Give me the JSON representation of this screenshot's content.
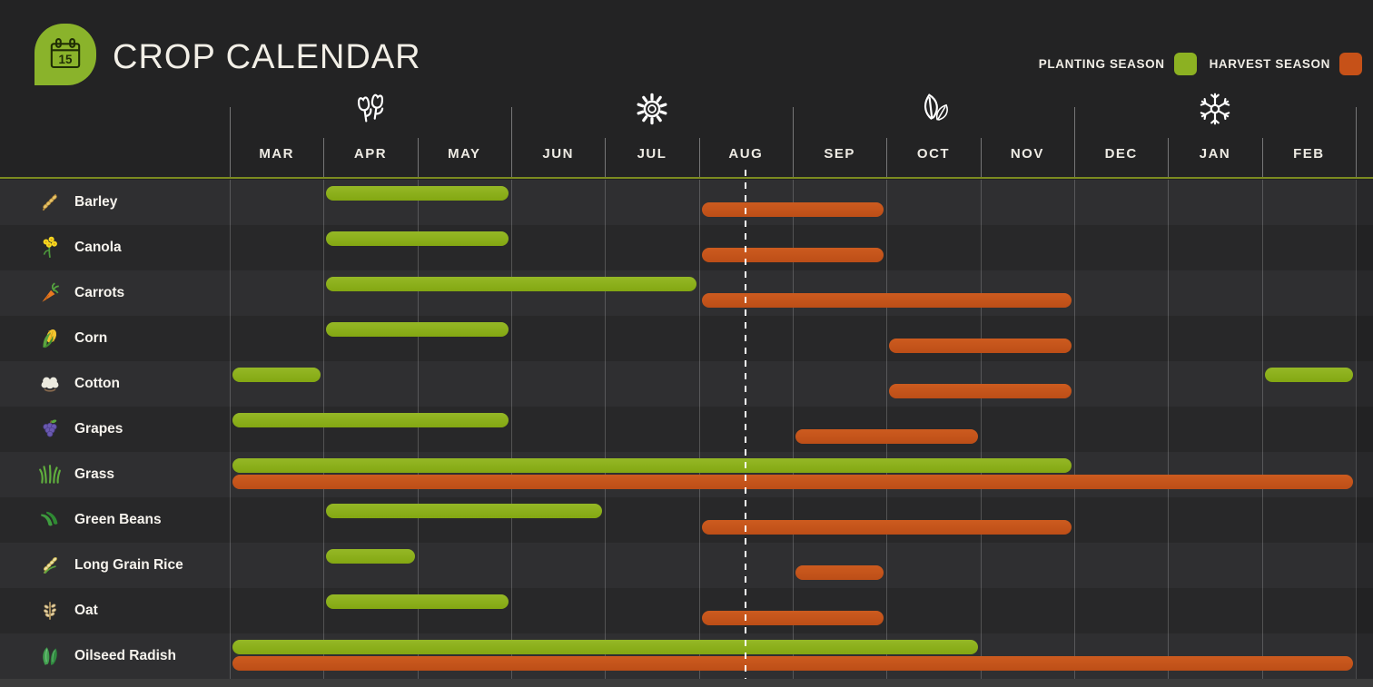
{
  "header": {
    "title": "CROP CALENDAR",
    "logo": {
      "icon": "calendar-icon",
      "day": "15",
      "color": "#8ab32b"
    },
    "legend": [
      {
        "key": "planting",
        "label": "PLANTING SEASON",
        "color": "#8cb122"
      },
      {
        "key": "harvest",
        "label": "HARVEST SEASON",
        "color": "#c65118"
      }
    ]
  },
  "chart_data": {
    "type": "bar",
    "subtype": "seasonal-gantt-calendar",
    "title": "CROP CALENDAR",
    "months": [
      "MAR",
      "APR",
      "MAY",
      "JUN",
      "JUL",
      "AUG",
      "SEP",
      "OCT",
      "NOV",
      "DEC",
      "JAN",
      "FEB"
    ],
    "seasons": [
      {
        "name": "spring",
        "icon": "tulips-icon",
        "over_month": "APR"
      },
      {
        "name": "summer",
        "icon": "sun-icon",
        "over_month": "JUL"
      },
      {
        "name": "autumn",
        "icon": "leaves-icon",
        "over_month": "OCT"
      },
      {
        "name": "winter",
        "icon": "snowflake-icon",
        "over_month": "JAN"
      }
    ],
    "today_marker": {
      "month": "AUG",
      "fraction": 0.5
    },
    "series_colors": {
      "planting": "#85aa17",
      "harvest": "#c2521a"
    },
    "legend_position": "top-right",
    "grid": true,
    "crops": [
      {
        "name": "Barley",
        "icon": "barley-icon",
        "planting": [
          [
            "APR",
            "MAY"
          ]
        ],
        "harvest": [
          [
            "AUG",
            "SEP"
          ]
        ]
      },
      {
        "name": "Canola",
        "icon": "canola-icon",
        "planting": [
          [
            "APR",
            "MAY"
          ]
        ],
        "harvest": [
          [
            "AUG",
            "SEP"
          ]
        ]
      },
      {
        "name": "Carrots",
        "icon": "carrot-icon",
        "planting": [
          [
            "APR",
            "JUL"
          ]
        ],
        "harvest": [
          [
            "AUG",
            "NOV"
          ]
        ]
      },
      {
        "name": "Corn",
        "icon": "corn-icon",
        "planting": [
          [
            "APR",
            "MAY"
          ]
        ],
        "harvest": [
          [
            "OCT",
            "NOV"
          ]
        ]
      },
      {
        "name": "Cotton",
        "icon": "cotton-icon",
        "planting": [
          [
            "MAR",
            "MAR"
          ],
          [
            "FEB",
            "FEB"
          ]
        ],
        "harvest": [
          [
            "OCT",
            "NOV"
          ]
        ]
      },
      {
        "name": "Grapes",
        "icon": "grapes-icon",
        "planting": [
          [
            "MAR",
            "MAY"
          ]
        ],
        "harvest": [
          [
            "SEP",
            "OCT"
          ]
        ]
      },
      {
        "name": "Grass",
        "icon": "grass-icon",
        "planting": [
          [
            "MAR",
            "NOV"
          ]
        ],
        "harvest": [
          [
            "MAR",
            "FEB"
          ]
        ]
      },
      {
        "name": "Green Beans",
        "icon": "green-beans-icon",
        "planting": [
          [
            "APR",
            "JUN"
          ]
        ],
        "harvest": [
          [
            "AUG",
            "NOV"
          ]
        ]
      },
      {
        "name": "Long Grain Rice",
        "icon": "rice-icon",
        "planting": [
          [
            "APR",
            "APR"
          ]
        ],
        "harvest": [
          [
            "SEP",
            "SEP"
          ]
        ]
      },
      {
        "name": "Oat",
        "icon": "oat-icon",
        "planting": [
          [
            "APR",
            "MAY"
          ]
        ],
        "harvest": [
          [
            "AUG",
            "SEP"
          ]
        ]
      },
      {
        "name": "Oilseed Radish",
        "icon": "radish-icon",
        "planting": [
          [
            "MAR",
            "OCT"
          ]
        ],
        "harvest": [
          [
            "MAR",
            "FEB"
          ]
        ]
      }
    ]
  }
}
